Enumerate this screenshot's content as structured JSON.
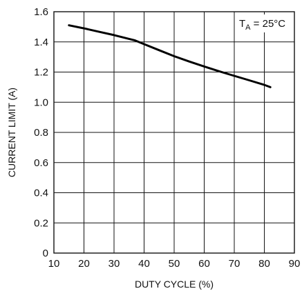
{
  "chart_data": {
    "type": "line",
    "title": "",
    "xlabel": "DUTY CYCLE (%)",
    "ylabel": "CURRENT LIMIT (A)",
    "xlim": [
      10,
      90
    ],
    "ylim": [
      0,
      1.6
    ],
    "grid": true,
    "x_ticks": [
      "10",
      "20",
      "30",
      "40",
      "50",
      "60",
      "70",
      "80",
      "90"
    ],
    "y_ticks": [
      "0",
      "0.2",
      "0.4",
      "0.6",
      "0.8",
      "1.0",
      "1.2",
      "1.4",
      "1.6"
    ],
    "annotation": {
      "prefix": "T",
      "subscript": "A",
      "suffix": " = 25°C"
    },
    "series": [
      {
        "x": [
          15,
          20,
          25,
          30,
          35,
          37,
          40,
          45,
          50,
          55,
          60,
          65,
          70,
          75,
          80,
          82
        ],
        "y": [
          1.51,
          1.49,
          1.467,
          1.445,
          1.42,
          1.41,
          1.385,
          1.345,
          1.305,
          1.27,
          1.237,
          1.205,
          1.175,
          1.145,
          1.115,
          1.1
        ]
      }
    ]
  }
}
